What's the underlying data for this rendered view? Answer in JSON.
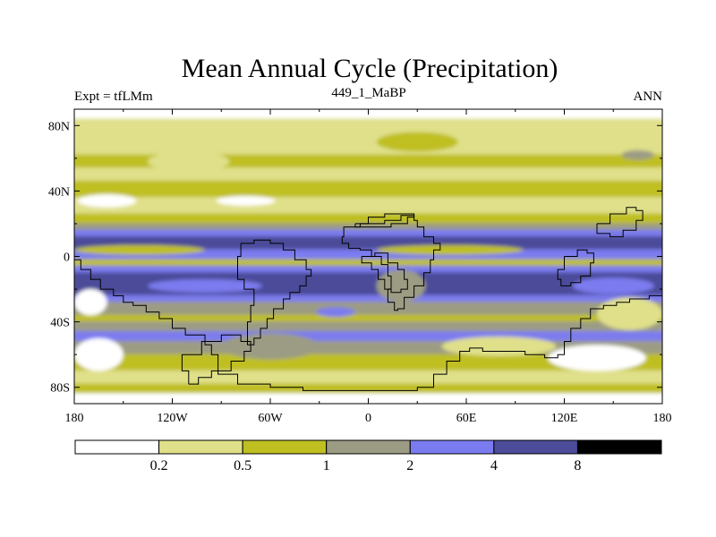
{
  "chart_data": {
    "type": "heatmap",
    "title": "Mean Annual Cycle (Precipitation)",
    "subtitle_left": "Expt = tfLMm",
    "subtitle_center": "449_1_MaBP",
    "subtitle_right": "ANN",
    "x_ticks": [
      "180",
      "120W",
      "60W",
      "0",
      "60E",
      "120E",
      "180"
    ],
    "x_tick_values": [
      -180,
      -120,
      -60,
      0,
      60,
      120,
      180
    ],
    "y_ticks": [
      "80N",
      "40N",
      "0",
      "40S",
      "80S"
    ],
    "y_tick_values": [
      80,
      40,
      0,
      -40,
      -80
    ],
    "xlim": [
      -180,
      180
    ],
    "ylim": [
      -90,
      90
    ],
    "colorbar": {
      "levels": [
        "0.2",
        "0.5",
        "1",
        "2",
        "4",
        "8"
      ],
      "level_values": [
        0.2,
        0.5,
        1,
        2,
        4,
        8
      ],
      "colors": [
        "#ffffff",
        "#e0e08a",
        "#bfbf22",
        "#9c9c84",
        "#7b7bf0",
        "#4c4c9a",
        "#000000"
      ]
    },
    "zonal_bands": [
      {
        "lat_from": 90,
        "lat_to": 84,
        "value": 0.1
      },
      {
        "lat_from": 84,
        "lat_to": 62,
        "value": 0.3
      },
      {
        "lat_from": 62,
        "lat_to": 54,
        "value": 0.7
      },
      {
        "lat_from": 54,
        "lat_to": 46,
        "value": 0.3
      },
      {
        "lat_from": 46,
        "lat_to": 36,
        "value": 0.7
      },
      {
        "lat_from": 36,
        "lat_to": 26,
        "value": 0.3
      },
      {
        "lat_from": 26,
        "lat_to": 20,
        "value": 0.7
      },
      {
        "lat_from": 20,
        "lat_to": 16,
        "value": 1.5
      },
      {
        "lat_from": 16,
        "lat_to": 12,
        "value": 3
      },
      {
        "lat_from": 12,
        "lat_to": 4,
        "value": 6
      },
      {
        "lat_from": 4,
        "lat_to": -2,
        "value": 3
      },
      {
        "lat_from": -2,
        "lat_to": -6,
        "value": 0.7
      },
      {
        "lat_from": -6,
        "lat_to": -10,
        "value": 3
      },
      {
        "lat_from": -10,
        "lat_to": -24,
        "value": 6
      },
      {
        "lat_from": -24,
        "lat_to": -28,
        "value": 3
      },
      {
        "lat_from": -28,
        "lat_to": -36,
        "value": 1.5
      },
      {
        "lat_from": -36,
        "lat_to": -40,
        "value": 0.7
      },
      {
        "lat_from": -40,
        "lat_to": -46,
        "value": 1.5
      },
      {
        "lat_from": -46,
        "lat_to": -52,
        "value": 3
      },
      {
        "lat_from": -52,
        "lat_to": -60,
        "value": 1.5
      },
      {
        "lat_from": -60,
        "lat_to": -70,
        "value": 0.7
      },
      {
        "lat_from": -70,
        "lat_to": -78,
        "value": 0.3
      },
      {
        "lat_from": -78,
        "lat_to": -84,
        "value": 0.7
      },
      {
        "lat_from": -84,
        "lat_to": -90,
        "value": 0.1
      }
    ],
    "anomalies": [
      {
        "lon": -140,
        "lat": 4,
        "rlon": 40,
        "rlat": 3,
        "value": 0.7
      },
      {
        "lon": 50,
        "lat": 4,
        "rlon": 45,
        "rlat": 3,
        "value": 0.7
      },
      {
        "lon": -100,
        "lat": -18,
        "rlon": 35,
        "rlat": 4,
        "value": 3
      },
      {
        "lon": 150,
        "lat": -18,
        "rlon": 25,
        "rlat": 5,
        "value": 3
      },
      {
        "lon": -110,
        "lat": 58,
        "rlon": 25,
        "rlat": 6,
        "value": 0.3
      },
      {
        "lon": 30,
        "lat": 70,
        "rlon": 25,
        "rlat": 6,
        "value": 0.7
      },
      {
        "lon": -160,
        "lat": 34,
        "rlon": 18,
        "rlat": 4,
        "value": 0.1
      },
      {
        "lon": -75,
        "lat": 34,
        "rlon": 18,
        "rlat": 3,
        "value": 0.1
      },
      {
        "lon": -170,
        "lat": -28,
        "rlon": 10,
        "rlat": 8,
        "value": 0.1
      },
      {
        "lon": 160,
        "lat": -35,
        "rlon": 20,
        "rlat": 10,
        "value": 0.3
      },
      {
        "lon": -165,
        "lat": -60,
        "rlon": 15,
        "rlat": 10,
        "value": 0.1
      },
      {
        "lon": 140,
        "lat": -62,
        "rlon": 30,
        "rlat": 8,
        "value": 0.1
      },
      {
        "lon": -20,
        "lat": -34,
        "rlon": 12,
        "rlat": 3,
        "value": 3
      },
      {
        "lon": 20,
        "lat": -18,
        "rlon": 15,
        "rlat": 10,
        "value": 1.5
      },
      {
        "lon": -60,
        "lat": -55,
        "rlon": 30,
        "rlat": 8,
        "value": 1.5
      },
      {
        "lon": 80,
        "lat": -55,
        "rlon": 35,
        "rlat": 6,
        "value": 0.3
      },
      {
        "lon": 165,
        "lat": 62,
        "rlon": 10,
        "rlat": 3,
        "value": 1.5
      }
    ],
    "coastlines": [
      {
        "name": "africa-outline",
        "points": [
          [
            -5,
            20
          ],
          [
            10,
            22
          ],
          [
            20,
            25
          ],
          [
            28,
            22
          ],
          [
            30,
            18
          ],
          [
            34,
            12
          ],
          [
            40,
            8
          ],
          [
            44,
            4
          ],
          [
            40,
            -2
          ],
          [
            38,
            -10
          ],
          [
            34,
            -18
          ],
          [
            28,
            -25
          ],
          [
            22,
            -32
          ],
          [
            18,
            -33
          ],
          [
            16,
            -28
          ],
          [
            12,
            -20
          ],
          [
            14,
            -12
          ],
          [
            12,
            -5
          ],
          [
            8,
            0
          ],
          [
            2,
            4
          ],
          [
            -5,
            5
          ],
          [
            -12,
            8
          ],
          [
            -16,
            12
          ],
          [
            -15,
            18
          ],
          [
            -5,
            20
          ]
        ]
      },
      {
        "name": "south-america-outline",
        "points": [
          [
            -78,
            8
          ],
          [
            -70,
            10
          ],
          [
            -60,
            8
          ],
          [
            -52,
            4
          ],
          [
            -45,
            -2
          ],
          [
            -38,
            -8
          ],
          [
            -35,
            -12
          ],
          [
            -38,
            -18
          ],
          [
            -42,
            -22
          ],
          [
            -48,
            -26
          ],
          [
            -52,
            -32
          ],
          [
            -58,
            -38
          ],
          [
            -62,
            -44
          ],
          [
            -66,
            -50
          ],
          [
            -70,
            -54
          ],
          [
            -74,
            -50
          ],
          [
            -74,
            -40
          ],
          [
            -72,
            -30
          ],
          [
            -70,
            -20
          ],
          [
            -76,
            -14
          ],
          [
            -80,
            -6
          ],
          [
            -80,
            0
          ],
          [
            -78,
            8
          ]
        ]
      },
      {
        "name": "north-america-outline",
        "points": [
          [
            -180,
            -2
          ],
          [
            -176,
            -8
          ],
          [
            -170,
            -14
          ],
          [
            -164,
            -20
          ],
          [
            -156,
            -24
          ],
          [
            -150,
            -28
          ],
          [
            -144,
            -30
          ],
          [
            -136,
            -34
          ],
          [
            -128,
            -38
          ],
          [
            -120,
            -44
          ],
          [
            -112,
            -48
          ],
          [
            -100,
            -54
          ],
          [
            -96,
            -60
          ],
          [
            -92,
            -72
          ],
          [
            -80,
            -78
          ],
          [
            -60,
            -80
          ],
          [
            -40,
            -82
          ],
          [
            -20,
            -82
          ],
          [
            0,
            -82
          ],
          [
            20,
            -82
          ],
          [
            30,
            -80
          ],
          [
            40,
            -72
          ],
          [
            48,
            -64
          ],
          [
            56,
            -58
          ],
          [
            62,
            -56
          ],
          [
            70,
            -58
          ],
          [
            80,
            -58
          ],
          [
            96,
            -60
          ],
          [
            108,
            -62
          ],
          [
            116,
            -60
          ],
          [
            120,
            -52
          ],
          [
            124,
            -44
          ],
          [
            130,
            -38
          ],
          [
            136,
            -32
          ],
          [
            144,
            -30
          ],
          [
            152,
            -28
          ],
          [
            160,
            -26
          ],
          [
            172,
            -24
          ],
          [
            180,
            -22
          ]
        ]
      },
      {
        "name": "antarctica-outline",
        "points": [
          [
            -110,
            -78
          ],
          [
            -104,
            -74
          ],
          [
            -96,
            -70
          ],
          [
            -84,
            -64
          ],
          [
            -76,
            -58
          ],
          [
            -72,
            -52
          ],
          [
            -78,
            -48
          ],
          [
            -90,
            -52
          ],
          [
            -102,
            -60
          ],
          [
            -114,
            -70
          ],
          [
            -110,
            -78
          ]
        ]
      },
      {
        "name": "india-outline",
        "points": [
          [
            -4,
            0
          ],
          [
            4,
            2
          ],
          [
            12,
            -4
          ],
          [
            18,
            -8
          ],
          [
            22,
            -14
          ],
          [
            24,
            -20
          ],
          [
            20,
            -22
          ],
          [
            14,
            -20
          ],
          [
            10,
            -14
          ],
          [
            6,
            -8
          ],
          [
            2,
            -4
          ],
          [
            -4,
            0
          ]
        ]
      },
      {
        "name": "australia-outline",
        "points": [
          [
            120,
            0
          ],
          [
            128,
            4
          ],
          [
            134,
            2
          ],
          [
            138,
            -4
          ],
          [
            136,
            -12
          ],
          [
            130,
            -16
          ],
          [
            124,
            -18
          ],
          [
            118,
            -14
          ],
          [
            116,
            -8
          ],
          [
            120,
            0
          ]
        ]
      },
      {
        "name": "maritime-outline",
        "points": [
          [
            -8,
            20
          ],
          [
            0,
            24
          ],
          [
            10,
            26
          ],
          [
            20,
            26
          ],
          [
            28,
            24
          ],
          [
            24,
            20
          ],
          [
            14,
            18
          ],
          [
            4,
            18
          ],
          [
            -8,
            20
          ]
        ]
      },
      {
        "name": "east-asia-outline",
        "points": [
          [
            140,
            20
          ],
          [
            148,
            26
          ],
          [
            158,
            30
          ],
          [
            164,
            28
          ],
          [
            168,
            22
          ],
          [
            164,
            16
          ],
          [
            156,
            12
          ],
          [
            148,
            14
          ],
          [
            140,
            20
          ]
        ]
      }
    ]
  }
}
